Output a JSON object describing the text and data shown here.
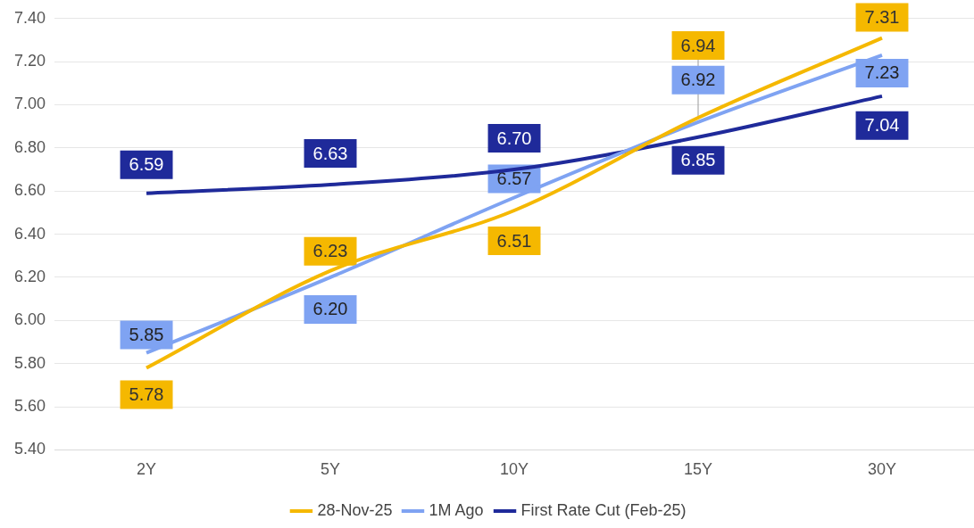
{
  "chart_data": {
    "type": "line",
    "categories": [
      "2Y",
      "5Y",
      "10Y",
      "15Y",
      "30Y"
    ],
    "series": [
      {
        "name": "28-Nov-25",
        "color": "#f5b800",
        "values": [
          5.78,
          6.23,
          6.51,
          6.94,
          7.31
        ],
        "value_labels": [
          "5.78",
          "6.23",
          "6.51",
          "6.94",
          "7.31"
        ]
      },
      {
        "name": "1M Ago",
        "color": "#7fa3f2",
        "values": [
          5.85,
          6.2,
          6.57,
          6.92,
          7.23
        ],
        "value_labels": [
          "5.85",
          "6.20",
          "6.57",
          "6.92",
          "7.23"
        ]
      },
      {
        "name": "First Rate Cut (Feb-25)",
        "color": "#1f2a9a",
        "values": [
          6.59,
          6.63,
          6.7,
          6.85,
          7.04
        ],
        "value_labels": [
          "6.59",
          "6.63",
          "6.70",
          "6.85",
          "7.04"
        ]
      }
    ],
    "ylim": [
      5.4,
      7.4
    ],
    "yticks": [
      {
        "value": 5.4,
        "label": "5.40"
      },
      {
        "value": 5.6,
        "label": "5.60"
      },
      {
        "value": 5.8,
        "label": "5.80"
      },
      {
        "value": 6.0,
        "label": "6.00"
      },
      {
        "value": 6.2,
        "label": "6.20"
      },
      {
        "value": 6.4,
        "label": "6.40"
      },
      {
        "value": 6.6,
        "label": "6.60"
      },
      {
        "value": 6.8,
        "label": "6.80"
      },
      {
        "value": 7.0,
        "label": "7.00"
      },
      {
        "value": 7.2,
        "label": "7.20"
      },
      {
        "value": 7.4,
        "label": "7.40"
      }
    ],
    "grid": "y",
    "legend": "bottom",
    "marker": "none",
    "line_style": "solid"
  }
}
